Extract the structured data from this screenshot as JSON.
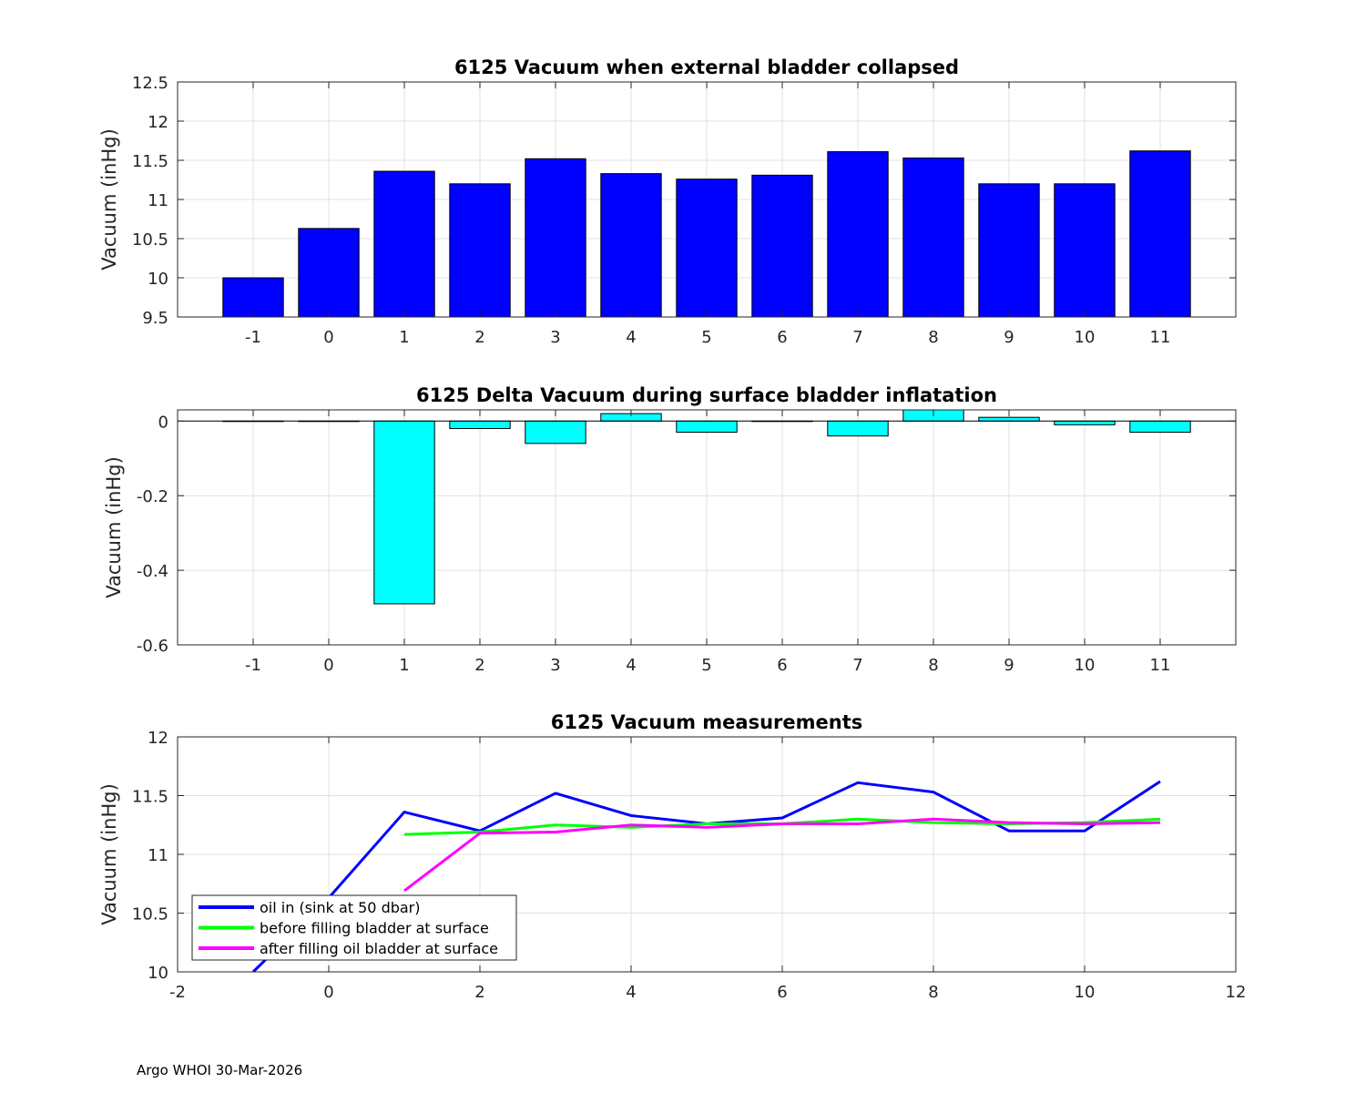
{
  "footer": "Argo WHOI 30-Mar-2026",
  "chart_data": [
    {
      "type": "bar",
      "title": "6125 Vacuum when external bladder collapsed",
      "xlabel": "",
      "ylabel": "Vacuum (inHg)",
      "categories": [
        "-1",
        "0",
        "1",
        "2",
        "3",
        "4",
        "5",
        "6",
        "7",
        "8",
        "9",
        "10",
        "11"
      ],
      "x": [
        -1,
        0,
        1,
        2,
        3,
        4,
        5,
        6,
        7,
        8,
        9,
        10,
        11
      ],
      "values": [
        10.0,
        10.63,
        11.36,
        11.2,
        11.52,
        11.33,
        11.26,
        11.31,
        11.61,
        11.53,
        11.2,
        11.2,
        11.62
      ],
      "xlim": [
        -2,
        12
      ],
      "ylim": [
        9.5,
        12.5
      ],
      "yticks": [
        9.5,
        10,
        10.5,
        11,
        11.5,
        12,
        12.5
      ],
      "ytick_labels": [
        "9.5",
        "10",
        "10.5",
        "11",
        "11.5",
        "12",
        "12.5"
      ],
      "grid": true,
      "color": "#0000ff"
    },
    {
      "type": "bar",
      "title": "6125 Delta Vacuum during surface bladder inflatation",
      "xlabel": "",
      "ylabel": "Vacuum (inHg)",
      "categories": [
        "-1",
        "0",
        "1",
        "2",
        "3",
        "4",
        "5",
        "6",
        "7",
        "8",
        "9",
        "10",
        "11"
      ],
      "x": [
        -1,
        0,
        1,
        2,
        3,
        4,
        5,
        6,
        7,
        8,
        9,
        10,
        11
      ],
      "values": [
        0,
        0,
        -0.49,
        -0.02,
        -0.06,
        0.02,
        -0.03,
        0,
        -0.04,
        0.03,
        0.01,
        -0.01,
        -0.03
      ],
      "xlim": [
        -2,
        12
      ],
      "ylim": [
        -0.6,
        0.03
      ],
      "yticks": [
        -0.6,
        -0.4,
        -0.2,
        0
      ],
      "ytick_labels": [
        "-0.6",
        "-0.4",
        "-0.2",
        "0"
      ],
      "grid": true,
      "color": "#00ffff"
    },
    {
      "type": "line",
      "title": "6125 Vacuum measurements",
      "xlabel": "",
      "ylabel": "Vacuum (inHg)",
      "xlim": [
        -2,
        12
      ],
      "ylim": [
        10,
        12
      ],
      "xticks": [
        -2,
        0,
        2,
        4,
        6,
        8,
        10,
        12
      ],
      "xtick_labels": [
        "-2",
        "0",
        "2",
        "4",
        "6",
        "8",
        "10",
        "12"
      ],
      "yticks": [
        10,
        10.5,
        11,
        11.5,
        12
      ],
      "ytick_labels": [
        "10",
        "10.5",
        "11",
        "11.5",
        "12"
      ],
      "grid": true,
      "legend_position": "bottom-left",
      "series": [
        {
          "name": "oil in (sink at 50 dbar)",
          "color": "#0000ff",
          "x": [
            -1,
            0,
            1,
            2,
            3,
            4,
            5,
            6,
            7,
            8,
            9,
            10,
            11
          ],
          "values": [
            10.0,
            10.63,
            11.36,
            11.2,
            11.52,
            11.33,
            11.26,
            11.31,
            11.61,
            11.53,
            11.2,
            11.2,
            11.62
          ]
        },
        {
          "name": "before filling bladder at surface",
          "color": "#00ff00",
          "x": [
            1,
            2,
            3,
            4,
            5,
            6,
            7,
            8,
            9,
            10,
            11
          ],
          "values": [
            11.17,
            11.19,
            11.25,
            11.23,
            11.26,
            11.26,
            11.3,
            11.27,
            11.26,
            11.27,
            11.3
          ]
        },
        {
          "name": "after filling oil bladder at surface",
          "color": "#ff00ff",
          "x": [
            1,
            2,
            3,
            4,
            5,
            6,
            7,
            8,
            9,
            10,
            11
          ],
          "values": [
            10.69,
            11.18,
            11.19,
            11.25,
            11.23,
            11.26,
            11.26,
            11.3,
            11.27,
            11.26,
            11.27
          ]
        }
      ]
    }
  ]
}
